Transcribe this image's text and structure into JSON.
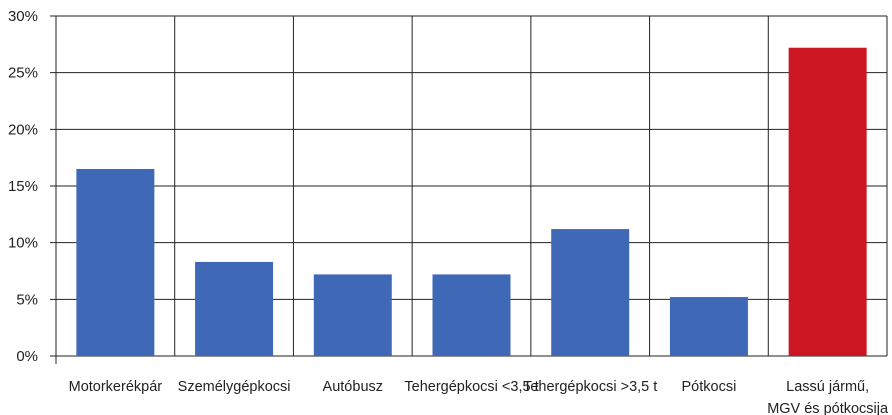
{
  "chart_data": {
    "type": "bar",
    "categories": [
      [
        "Motorkerékpár"
      ],
      [
        "Személygépkocsi"
      ],
      [
        "Autóbusz"
      ],
      [
        "Tehergépkocsi <3,5 t"
      ],
      [
        "Tehergépkocsi >3,5 t"
      ],
      [
        "Pótkocsi"
      ],
      [
        "Lassú jármű,",
        "MGV és pótkocsija"
      ]
    ],
    "values": [
      16.5,
      8.3,
      7.2,
      7.2,
      11.2,
      5.2,
      27.2
    ],
    "ylim": [
      0,
      30
    ],
    "y_ticks": [
      "0%",
      "5%",
      "10%",
      "15%",
      "20%",
      "25%",
      "30%"
    ],
    "grid": true,
    "colors": {
      "default_bar": "#3f69b6",
      "highlight_bar": "#cc1722",
      "grid": "#222222",
      "axis": "#222222"
    },
    "highlight_index": 6
  }
}
